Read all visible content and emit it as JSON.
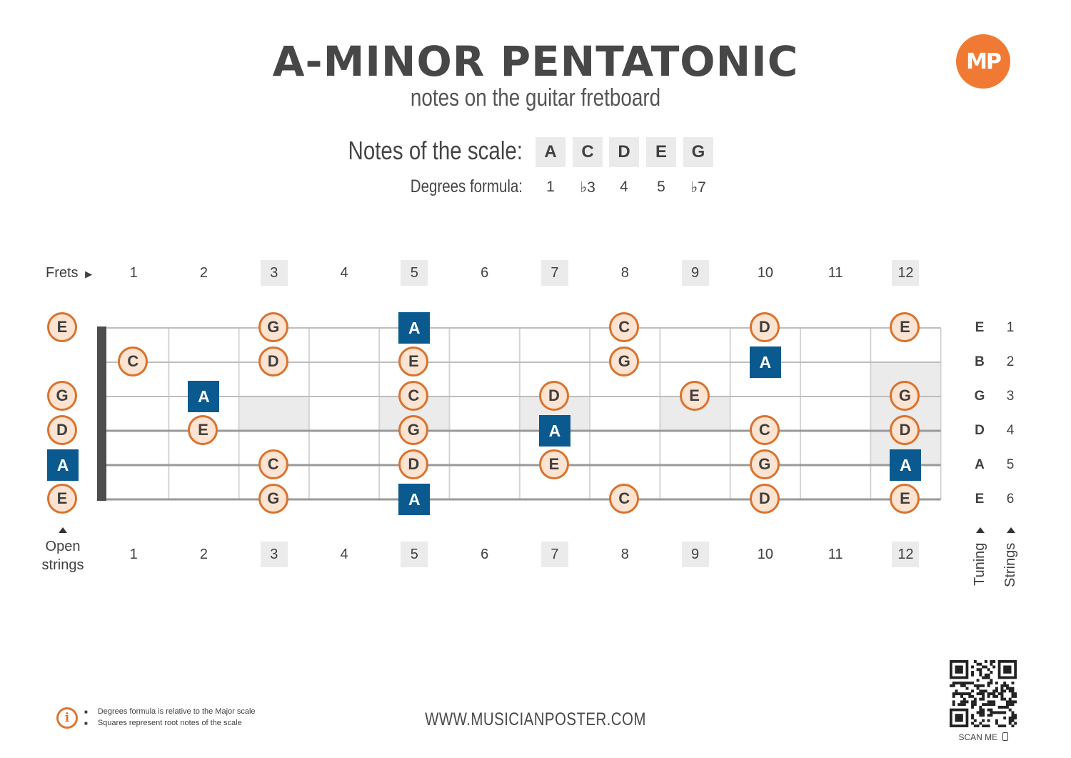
{
  "header": {
    "title": "A-MINOR PENTATONIC",
    "subtitle": "notes on the guitar fretboard"
  },
  "logo": {
    "text": "MP",
    "color": "#f07a34"
  },
  "scale": {
    "notes_label": "Notes of the scale:",
    "notes": [
      "A",
      "C",
      "D",
      "E",
      "G"
    ],
    "degrees_label": "Degrees formula:",
    "degrees": [
      "1",
      "♭3",
      "4",
      "5",
      "♭7"
    ]
  },
  "fretboard": {
    "frets_label": "Frets",
    "fret_numbers": [
      "1",
      "2",
      "3",
      "4",
      "5",
      "6",
      "7",
      "8",
      "9",
      "10",
      "11",
      "12"
    ],
    "marker_frets": [
      3,
      5,
      7,
      9,
      12
    ],
    "open_strings_label_1": "Open",
    "open_strings_label_2": "strings",
    "tuning_label": "Tuning",
    "strings_label": "Strings",
    "tuning": [
      "E",
      "B",
      "G",
      "D",
      "A",
      "E"
    ],
    "string_numbers": [
      "1",
      "2",
      "3",
      "4",
      "5",
      "6"
    ],
    "open_notes": [
      {
        "string": 1,
        "note": "E",
        "root": false
      },
      {
        "string": 3,
        "note": "G",
        "root": false
      },
      {
        "string": 4,
        "note": "D",
        "root": false
      },
      {
        "string": 5,
        "note": "A",
        "root": true
      },
      {
        "string": 6,
        "note": "E",
        "root": false
      }
    ],
    "notes": [
      {
        "string": 1,
        "fret": 3,
        "note": "G",
        "root": false
      },
      {
        "string": 1,
        "fret": 5,
        "note": "A",
        "root": true
      },
      {
        "string": 1,
        "fret": 8,
        "note": "C",
        "root": false
      },
      {
        "string": 1,
        "fret": 10,
        "note": "D",
        "root": false
      },
      {
        "string": 1,
        "fret": 12,
        "note": "E",
        "root": false
      },
      {
        "string": 2,
        "fret": 1,
        "note": "C",
        "root": false
      },
      {
        "string": 2,
        "fret": 3,
        "note": "D",
        "root": false
      },
      {
        "string": 2,
        "fret": 5,
        "note": "E",
        "root": false
      },
      {
        "string": 2,
        "fret": 8,
        "note": "G",
        "root": false
      },
      {
        "string": 2,
        "fret": 10,
        "note": "A",
        "root": true
      },
      {
        "string": 3,
        "fret": 2,
        "note": "A",
        "root": true
      },
      {
        "string": 3,
        "fret": 5,
        "note": "C",
        "root": false
      },
      {
        "string": 3,
        "fret": 7,
        "note": "D",
        "root": false
      },
      {
        "string": 3,
        "fret": 9,
        "note": "E",
        "root": false
      },
      {
        "string": 3,
        "fret": 12,
        "note": "G",
        "root": false
      },
      {
        "string": 4,
        "fret": 2,
        "note": "E",
        "root": false
      },
      {
        "string": 4,
        "fret": 5,
        "note": "G",
        "root": false
      },
      {
        "string": 4,
        "fret": 7,
        "note": "A",
        "root": true
      },
      {
        "string": 4,
        "fret": 10,
        "note": "C",
        "root": false
      },
      {
        "string": 4,
        "fret": 12,
        "note": "D",
        "root": false
      },
      {
        "string": 5,
        "fret": 3,
        "note": "C",
        "root": false
      },
      {
        "string": 5,
        "fret": 5,
        "note": "D",
        "root": false
      },
      {
        "string": 5,
        "fret": 7,
        "note": "E",
        "root": false
      },
      {
        "string": 5,
        "fret": 10,
        "note": "G",
        "root": false
      },
      {
        "string": 5,
        "fret": 12,
        "note": "A",
        "root": true
      },
      {
        "string": 6,
        "fret": 3,
        "note": "G",
        "root": false
      },
      {
        "string": 6,
        "fret": 5,
        "note": "A",
        "root": true
      },
      {
        "string": 6,
        "fret": 8,
        "note": "C",
        "root": false
      },
      {
        "string": 6,
        "fret": 10,
        "note": "D",
        "root": false
      },
      {
        "string": 6,
        "fret": 12,
        "note": "E",
        "root": false
      }
    ],
    "colors": {
      "circle_fill": "#fce3d2",
      "circle_border": "#d9732e",
      "root_fill": "#0a5a8f",
      "marker_shade": "#ebebeb"
    }
  },
  "footer": {
    "info_1": "Degrees formula is relative to the Major scale",
    "info_2": "Squares represent root notes of the scale",
    "website": "WWW.MUSICIANPOSTER.COM",
    "scan_me": "SCAN ME"
  }
}
